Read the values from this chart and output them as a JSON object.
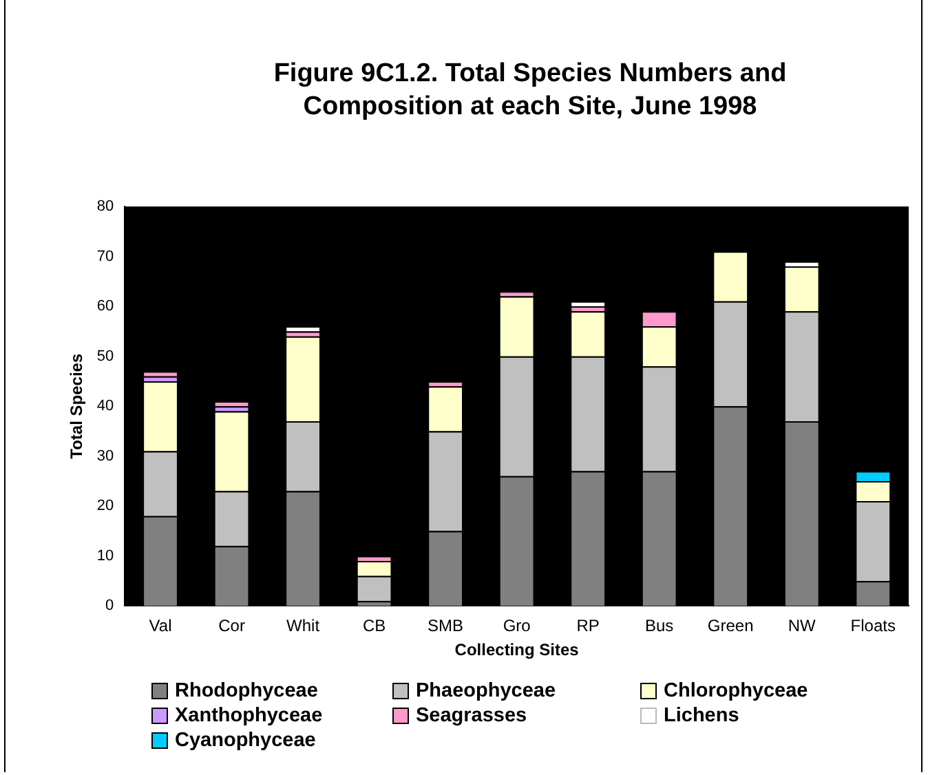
{
  "chart_data": {
    "type": "bar",
    "title": "Figure 9C1.2.  Total Species Numbers and Composition at each Site, June 1998",
    "xlabel": "Collecting Sites",
    "ylabel": "Total Species",
    "categories": [
      "Val",
      "Cor",
      "Whit",
      "CB",
      "SMB",
      "Gro",
      "RP",
      "Bus",
      "Green",
      "NW",
      "Floats"
    ],
    "stacked": true,
    "ylim": [
      0,
      80
    ],
    "yticks": [
      0,
      10,
      20,
      30,
      40,
      50,
      60,
      70,
      80
    ],
    "grid": false,
    "legend": "bottom",
    "series": [
      {
        "name": "Rhodophyceae",
        "color": "#808080",
        "values": [
          18,
          12,
          23,
          1,
          15,
          26,
          27,
          27,
          40,
          37,
          5
        ]
      },
      {
        "name": "Phaeophyceae",
        "color": "#c0c0c0",
        "values": [
          13,
          11,
          14,
          5,
          20,
          24,
          23,
          21,
          21,
          22,
          16
        ]
      },
      {
        "name": "Chlorophyceae",
        "color": "#ffffcc",
        "values": [
          14,
          16,
          17,
          3,
          9,
          12,
          9,
          8,
          10,
          9,
          4
        ]
      },
      {
        "name": "Xanthophyceae",
        "color": "#cc99ff",
        "values": [
          1,
          1,
          null,
          null,
          null,
          null,
          null,
          null,
          null,
          null,
          null
        ]
      },
      {
        "name": "Seagrasses",
        "color": "#ff99cc",
        "values": [
          1,
          1,
          1,
          1,
          1,
          1,
          1,
          3,
          null,
          null,
          null
        ]
      },
      {
        "name": "Lichens",
        "color": "#ffffff",
        "values": [
          null,
          null,
          1,
          null,
          null,
          null,
          1,
          null,
          null,
          1,
          null
        ]
      },
      {
        "name": "Cyanophyceae",
        "color": "#00ccff",
        "values": [
          null,
          null,
          null,
          null,
          null,
          null,
          null,
          null,
          null,
          null,
          2
        ]
      }
    ]
  }
}
